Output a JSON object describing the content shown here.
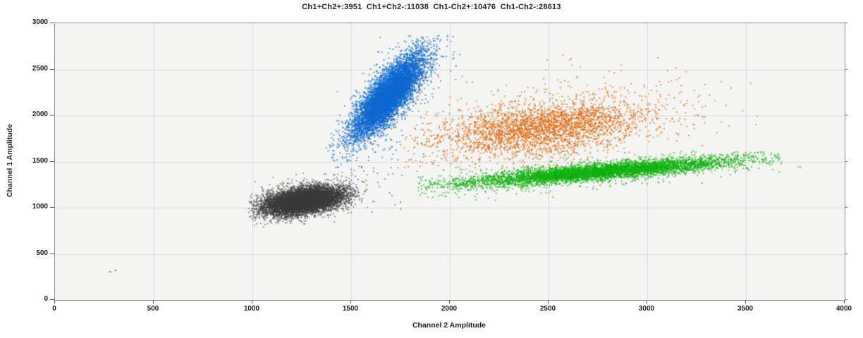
{
  "chart_data": {
    "type": "scatter",
    "title": "Ch1+Ch2+:3951  Ch1+Ch2-:11038  Ch1-Ch2+:10476  Ch1-Ch2-:28613",
    "title_parts": [
      {
        "label": "Ch1+Ch2+",
        "count": 3951
      },
      {
        "label": "Ch1+Ch2-",
        "count": 11038
      },
      {
        "label": "Ch1-Ch2+",
        "count": 10476
      },
      {
        "label": "Ch1-Ch2-",
        "count": 28613
      }
    ],
    "xlabel": "Channel 2 Amplitude",
    "ylabel": "Channel 1 Amplitude",
    "xlim": [
      0,
      4000
    ],
    "ylim": [
      0,
      3000
    ],
    "x_ticks": [
      0,
      500,
      1000,
      1500,
      2000,
      2500,
      3000,
      3500,
      4000
    ],
    "y_ticks": [
      0,
      500,
      1000,
      1500,
      2000,
      2500,
      3000
    ],
    "grid": true,
    "legend": "none",
    "colors": {
      "plot_bg": "#f4f4f2",
      "grid": "#dadada",
      "border": "#8c8c8c",
      "tick": "#555555",
      "text": "#222222",
      "negative": "#3b3b3b",
      "ch1_positive": "#0e68cf",
      "double_positive": "#e0690f",
      "ch2_positive": "#10b010"
    },
    "populations": [
      {
        "label": "Ch1-Ch2-",
        "count": 28613,
        "color": "#3b3b3b",
        "alpha": 0.6,
        "center": [
          1260,
          1075
        ],
        "sd": [
          100,
          68
        ],
        "slope": 0.3,
        "x_range": [
          980,
          1580
        ],
        "y_range": [
          790,
          1430
        ],
        "halo": {
          "p": 0.05,
          "scale": 1.7
        },
        "draw_points": 9500,
        "stragglers": []
      },
      {
        "label": "Ch1+Ch2-",
        "count": 11038,
        "color": "#0e68cf",
        "alpha": 0.75,
        "center": [
          1690,
          2215
        ],
        "sd": [
          85,
          130
        ],
        "slope": 1.95,
        "x_range": [
          1370,
          2060
        ],
        "y_range": [
          1330,
          2870
        ],
        "halo": {
          "p": 0.07,
          "scale": 1.8
        },
        "draw_points": 8500,
        "stragglers": [
          {
            "count": 45,
            "x": [
              1400,
              1800
            ],
            "y": [
              950,
              1750
            ]
          },
          {
            "count": 12,
            "x": [
              1800,
              2120
            ],
            "y": [
              1300,
              1850
            ]
          }
        ]
      },
      {
        "label": "Ch1+Ch2+",
        "count": 3951,
        "color": "#e0690f",
        "alpha": 0.8,
        "center": [
          2480,
          1870
        ],
        "sd": [
          250,
          135
        ],
        "slope": 0.22,
        "x_range": [
          1760,
          3460
        ],
        "y_range": [
          1380,
          2780
        ],
        "halo": {
          "p": 0.2,
          "scale": 1.8
        },
        "draw_points": 3300,
        "stragglers": [
          {
            "count": 14,
            "x": [
              2100,
              3350
            ],
            "y": [
              2350,
              2720
            ]
          },
          {
            "count": 10,
            "x": [
              3150,
              3600
            ],
            "y": [
              1750,
              2350
            ]
          }
        ]
      },
      {
        "label": "Ch1-Ch2+",
        "count": 10476,
        "color": "#10b010",
        "alpha": 0.75,
        "center": [
          2760,
          1390
        ],
        "sd": [
          320,
          42
        ],
        "slope": 0.17,
        "x_range": [
          1830,
          3680
        ],
        "y_range": [
          1140,
          1620
        ],
        "halo": {
          "p": 0.12,
          "scale": 1.8
        },
        "draw_points": 6500,
        "stragglers": [
          {
            "count": 55,
            "x": [
              1850,
              2550
            ],
            "y": [
              1080,
              1300
            ]
          },
          {
            "count": 2,
            "x": [
              3750,
              3800
            ],
            "y": [
              1420,
              1460
            ]
          }
        ]
      }
    ],
    "outliers": {
      "color": "#3b3b3b",
      "points": [
        [
          280,
          305
        ],
        [
          307,
          320
        ]
      ]
    }
  }
}
